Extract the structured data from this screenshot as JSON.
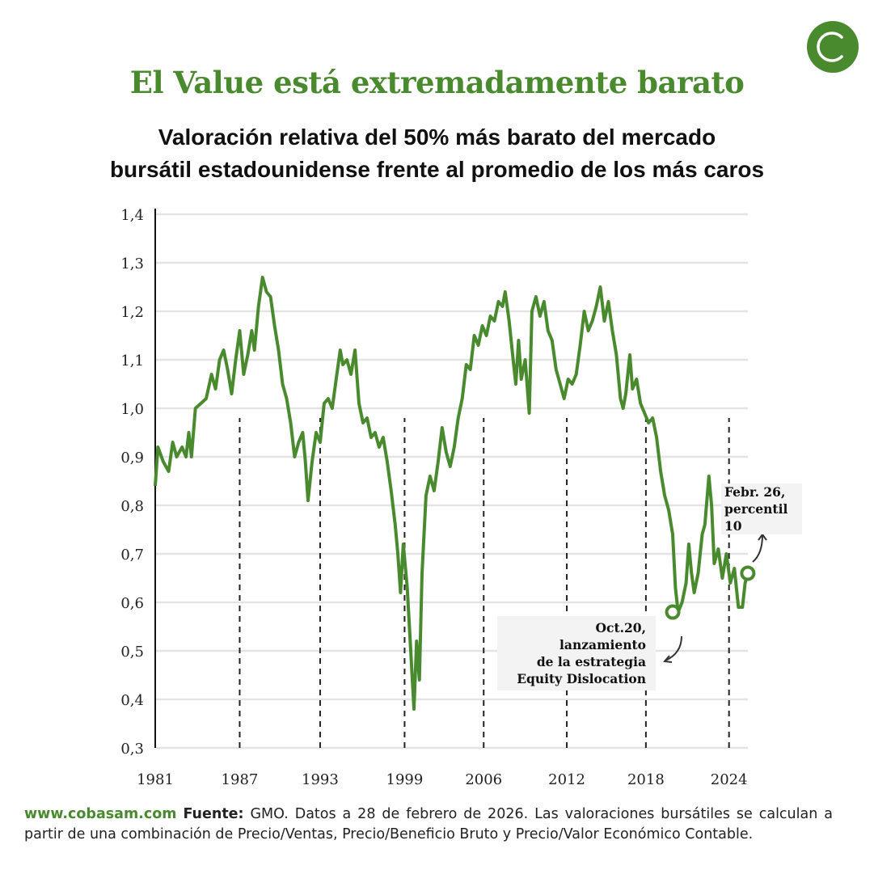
{
  "header": {
    "title": "El Value está extremadamente barato",
    "subtitle_line1": "Valoración relativa del 50% más barato del mercado",
    "subtitle_line2": "bursátil estadounidense frente al promedio de los más caros",
    "logo_icon": "cobas-c-logo"
  },
  "colors": {
    "brand": "#4a8a2e",
    "grid": "#e3e3e3",
    "text": "#111111"
  },
  "chart_data": {
    "type": "line",
    "title": "",
    "xlabel": "",
    "ylabel": "",
    "xlim": [
      1981,
      2025.2
    ],
    "ylim": [
      0.3,
      1.4
    ],
    "grid": "horizontal",
    "y_ticks": [
      "0,3",
      "0,4",
      "0,5",
      "0,6",
      "0,7",
      "0,8",
      "0,9",
      "1,0",
      "1,1",
      "1,2",
      "1,3",
      "1,4"
    ],
    "y_tick_values": [
      0.3,
      0.4,
      0.5,
      0.6,
      0.7,
      0.8,
      0.9,
      1.0,
      1.1,
      1.2,
      1.3,
      1.4
    ],
    "x_ticks": [
      "1981",
      "1987",
      "1993",
      "1999",
      "2006",
      "2012",
      "2018",
      "2024"
    ],
    "x_tick_values": [
      1981,
      1987.3,
      1993.3,
      1999.6,
      2005.5,
      2011.7,
      2017.6,
      2023.8
    ],
    "dashed_lines_at": [
      1987.3,
      1993.3,
      1999.6,
      2005.5,
      2011.7,
      2017.6,
      2023.8
    ],
    "series": [
      {
        "x": [
          1981.0,
          1981.2,
          1981.6,
          1982.0,
          1982.3,
          1982.6,
          1983.0,
          1983.3,
          1983.5,
          1983.7,
          1984.0,
          1984.4,
          1984.8,
          1985.2,
          1985.5,
          1985.8,
          1986.1,
          1986.4,
          1986.7,
          1987.0,
          1987.3,
          1987.6,
          1987.9,
          1988.2,
          1988.4,
          1988.7,
          1989.0,
          1989.3,
          1989.6,
          1989.9,
          1990.2,
          1990.5,
          1990.8,
          1991.1,
          1991.4,
          1991.7,
          1992.0,
          1992.2,
          1992.4,
          1992.7,
          1993.0,
          1993.3,
          1993.6,
          1993.9,
          1994.2,
          1994.5,
          1994.8,
          1995.0,
          1995.3,
          1995.6,
          1995.9,
          1996.2,
          1996.5,
          1996.8,
          1997.1,
          1997.4,
          1997.7,
          1998.0,
          1998.3,
          1998.6,
          1998.9,
          1999.1,
          1999.3,
          1999.5,
          1999.8,
          2000.1,
          2000.3,
          2000.5,
          2000.7,
          2000.9,
          2001.2,
          2001.5,
          2001.8,
          2002.1,
          2002.4,
          2002.7,
          2003.0,
          2003.3,
          2003.6,
          2003.9,
          2004.2,
          2004.5,
          2004.8,
          2005.1,
          2005.4,
          2005.7,
          2006.0,
          2006.3,
          2006.6,
          2006.9,
          2007.1,
          2007.4,
          2007.7,
          2007.9,
          2008.1,
          2008.3,
          2008.6,
          2008.9,
          2009.1,
          2009.4,
          2009.7,
          2010.0,
          2010.3,
          2010.6,
          2010.9,
          2011.2,
          2011.5,
          2011.8,
          2012.1,
          2012.4,
          2012.7,
          2013.0,
          2013.3,
          2013.6,
          2013.9,
          2014.2,
          2014.5,
          2014.8,
          2015.1,
          2015.4,
          2015.7,
          2015.9,
          2016.1,
          2016.4,
          2016.6,
          2016.9,
          2017.2,
          2017.5,
          2017.8,
          2018.1,
          2018.4,
          2018.7,
          2019.0,
          2019.3,
          2019.6,
          2019.8,
          2020.0,
          2020.3,
          2020.6,
          2020.8,
          2021.0,
          2021.2,
          2021.5,
          2021.8,
          2022.0,
          2022.3,
          2022.5,
          2022.7,
          2023.0,
          2023.3,
          2023.6,
          2023.9,
          2024.2,
          2024.5,
          2024.8,
          2025.0,
          2025.2
        ],
        "values": [
          0.84,
          0.92,
          0.89,
          0.87,
          0.93,
          0.9,
          0.92,
          0.9,
          0.95,
          0.9,
          1.0,
          1.01,
          1.02,
          1.07,
          1.04,
          1.1,
          1.12,
          1.08,
          1.03,
          1.1,
          1.16,
          1.07,
          1.11,
          1.16,
          1.12,
          1.21,
          1.27,
          1.24,
          1.23,
          1.17,
          1.12,
          1.05,
          1.02,
          0.97,
          0.9,
          0.93,
          0.95,
          0.89,
          0.81,
          0.89,
          0.95,
          0.93,
          1.01,
          1.02,
          1.0,
          1.06,
          1.12,
          1.09,
          1.1,
          1.07,
          1.12,
          1.01,
          0.97,
          0.98,
          0.94,
          0.95,
          0.92,
          0.94,
          0.89,
          0.83,
          0.76,
          0.7,
          0.62,
          0.72,
          0.63,
          0.48,
          0.38,
          0.52,
          0.44,
          0.66,
          0.82,
          0.86,
          0.83,
          0.89,
          0.96,
          0.91,
          0.88,
          0.92,
          0.98,
          1.02,
          1.09,
          1.08,
          1.15,
          1.13,
          1.17,
          1.15,
          1.19,
          1.18,
          1.22,
          1.21,
          1.24,
          1.18,
          1.1,
          1.05,
          1.14,
          1.06,
          1.1,
          0.99,
          1.2,
          1.23,
          1.19,
          1.22,
          1.16,
          1.14,
          1.08,
          1.05,
          1.02,
          1.06,
          1.05,
          1.07,
          1.13,
          1.2,
          1.16,
          1.18,
          1.21,
          1.25,
          1.18,
          1.22,
          1.16,
          1.11,
          1.02,
          1.0,
          1.03,
          1.11,
          1.04,
          1.06,
          1.01,
          0.99,
          0.97,
          0.98,
          0.94,
          0.87,
          0.82,
          0.79,
          0.74,
          0.63,
          0.58,
          0.6,
          0.64,
          0.72,
          0.66,
          0.62,
          0.66,
          0.74,
          0.76,
          0.86,
          0.8,
          0.68,
          0.71,
          0.65,
          0.7,
          0.64,
          0.67,
          0.59,
          0.59,
          0.64,
          0.66
        ]
      }
    ],
    "markers": [
      {
        "x": 2019.6,
        "y": 0.58
      },
      {
        "x": 2025.2,
        "y": 0.66
      }
    ],
    "annotations": [
      {
        "lines": [
          "Oct.20,",
          "lanzamiento",
          "de la estrategia",
          "Equity Dislocation"
        ]
      },
      {
        "lines": [
          "Febr. 26,",
          "percentil",
          "10"
        ]
      }
    ]
  },
  "footer": {
    "site": "www.cobasam.com",
    "source_label": "Fuente:",
    "text": " GMO. Datos a 28 de febrero de 2026. Las valoraciones bursátiles se calculan a partir de una combinación de Precio/Ventas, Precio/Beneficio Bruto y Precio/Valor Económico Contable."
  }
}
